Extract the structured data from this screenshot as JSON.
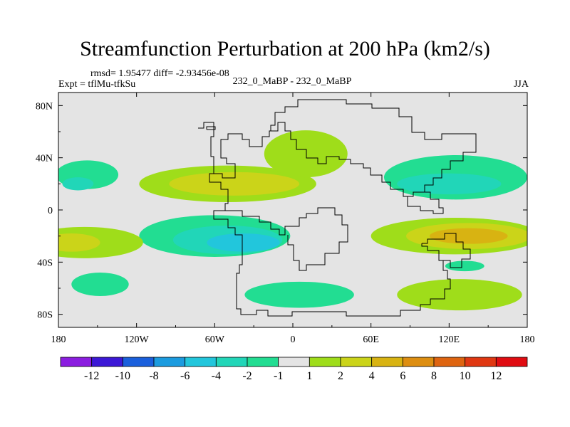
{
  "chart_data": {
    "type": "heatmap",
    "title": "Streamfunction Perturbation at 200 hPa (km2/s)",
    "stats": "rmsd= 1.95477 diff= -2.93456e-08",
    "left_label": "Expt = tflMu-tfkSu",
    "center_label": "232_0_MaBP - 232_0_MaBP",
    "right_label": "JJA",
    "x_ticks": [
      {
        "value": -180,
        "label": "180"
      },
      {
        "value": -120,
        "label": "120W"
      },
      {
        "value": -60,
        "label": "60W"
      },
      {
        "value": 0,
        "label": "0"
      },
      {
        "value": 60,
        "label": "60E"
      },
      {
        "value": 120,
        "label": "120E"
      },
      {
        "value": 180,
        "label": "180"
      }
    ],
    "y_ticks": [
      {
        "value": 80,
        "label": "80N"
      },
      {
        "value": 40,
        "label": "40N"
      },
      {
        "value": 0,
        "label": "0"
      },
      {
        "value": -40,
        "label": "40S"
      },
      {
        "value": -80,
        "label": "80S"
      }
    ],
    "xlim": [
      -180,
      180
    ],
    "ylim": [
      -90,
      90
    ],
    "colorbar": {
      "colors": [
        "#8b1de0",
        "#3c18d6",
        "#1a5fdc",
        "#1b9bdf",
        "#22c6dc",
        "#21d6b8",
        "#22dd92",
        "#e4e4e4",
        "#9fdd1a",
        "#cbd419",
        "#d8b312",
        "#dd8e11",
        "#de6410",
        "#e03712",
        "#e00c12"
      ],
      "labels": [
        "-12",
        "-10",
        "-8",
        "-6",
        "-4",
        "-2",
        "-1",
        "1",
        "2",
        "4",
        "6",
        "8",
        "10",
        "12"
      ]
    },
    "field_blobs": [
      {
        "lon": -158,
        "lat": 27,
        "rlon": 24,
        "rlat": 11,
        "bin": 6
      },
      {
        "lon": -165,
        "lat": 20,
        "rlon": 12,
        "rlat": 5,
        "bin": 5
      },
      {
        "lon": -50,
        "lat": 20,
        "rlon": 68,
        "rlat": 14,
        "bin": 8
      },
      {
        "lon": -45,
        "lat": 20,
        "rlon": 50,
        "rlat": 9,
        "bin": 9
      },
      {
        "lon": 10,
        "lat": 43,
        "rlon": 32,
        "rlat": 18,
        "bin": 8
      },
      {
        "lon": -60,
        "lat": -20,
        "rlon": 58,
        "rlat": 16,
        "bin": 6
      },
      {
        "lon": -50,
        "lat": -23,
        "rlon": 42,
        "rlat": 11,
        "bin": 5
      },
      {
        "lon": -38,
        "lat": -25,
        "rlon": 28,
        "rlat": 7,
        "bin": 4
      },
      {
        "lon": -160,
        "lat": -25,
        "rlon": 45,
        "rlat": 12,
        "bin": 8
      },
      {
        "lon": -170,
        "lat": -25,
        "rlon": 22,
        "rlat": 7,
        "bin": 9
      },
      {
        "lon": -148,
        "lat": -57,
        "rlon": 22,
        "rlat": 9,
        "bin": 6
      },
      {
        "lon": 5,
        "lat": -65,
        "rlon": 42,
        "rlat": 10,
        "bin": 6
      },
      {
        "lon": 125,
        "lat": 25,
        "rlon": 55,
        "rlat": 17,
        "bin": 6
      },
      {
        "lon": 120,
        "lat": 20,
        "rlon": 40,
        "rlat": 8,
        "bin": 5
      },
      {
        "lon": 125,
        "lat": -20,
        "rlon": 65,
        "rlat": 14,
        "bin": 8
      },
      {
        "lon": 135,
        "lat": -20,
        "rlon": 48,
        "rlat": 10,
        "bin": 9
      },
      {
        "lon": 135,
        "lat": -20,
        "rlon": 30,
        "rlat": 6,
        "bin": 10
      },
      {
        "lon": 128,
        "lat": -65,
        "rlon": 48,
        "rlat": 12,
        "bin": 8
      },
      {
        "lon": 132,
        "lat": -43,
        "rlon": 15,
        "rlat": 4,
        "bin": 6
      }
    ]
  }
}
